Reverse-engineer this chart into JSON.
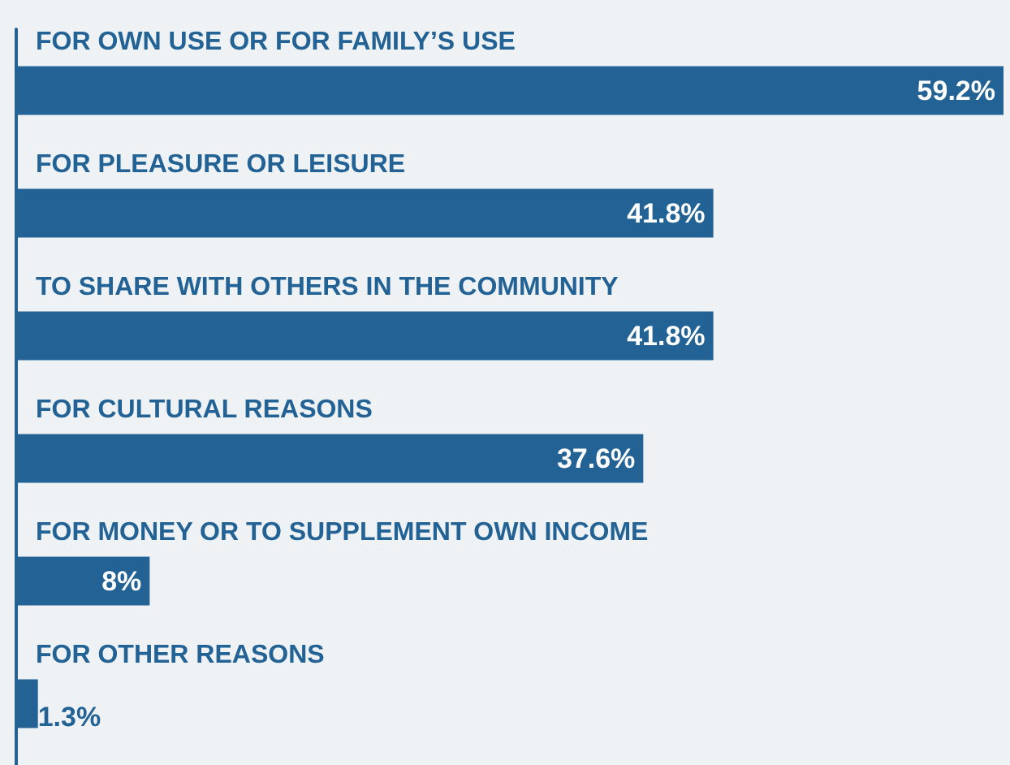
{
  "chart_data": {
    "type": "bar",
    "orientation": "horizontal",
    "categories": [
      "FOR OWN USE OR FOR FAMILY’S USE",
      "FOR PLEASURE OR LEISURE",
      "TO SHARE WITH OTHERS IN THE COMMUNITY",
      "FOR CULTURAL REASONS",
      "FOR MONEY OR TO SUPPLEMENT OWN INCOME",
      "FOR OTHER REASONS"
    ],
    "values": [
      59.2,
      41.8,
      41.8,
      37.6,
      8,
      1.3
    ],
    "value_labels": [
      "59.2%",
      "41.8%",
      "41.8%",
      "37.6%",
      "8%",
      "1.3%"
    ],
    "color": "#236294",
    "xlim": [
      0,
      59.2
    ]
  }
}
